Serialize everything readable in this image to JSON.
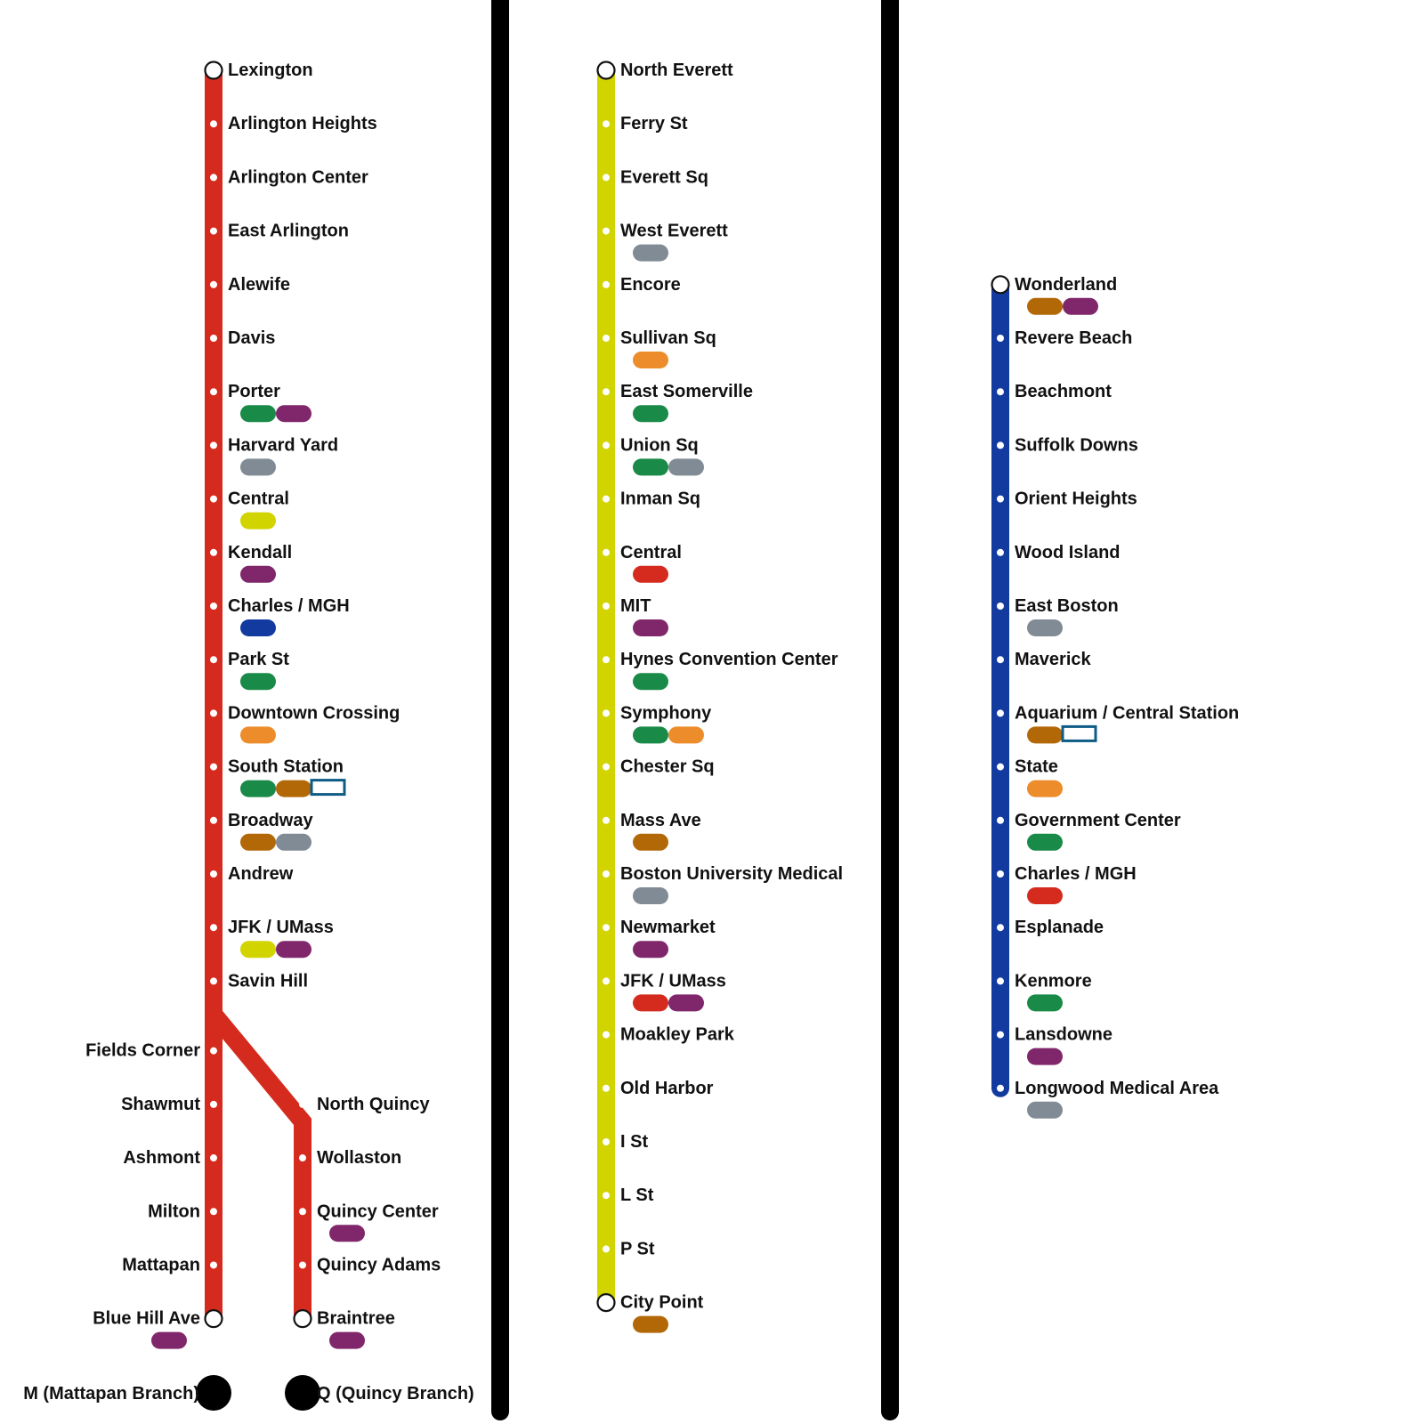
{
  "colors": {
    "red": "#d52b1e",
    "yellow": "#d2d400",
    "blue": "#123a9f",
    "green": "#1a8a48",
    "purple": "#80276c",
    "gray": "#808b95",
    "orange": "#ec8c2a",
    "brown": "#b36807",
    "outline": "#0e5c86",
    "divider": "#000000"
  },
  "lines": [
    {
      "color": "red",
      "trunk": [
        {
          "name": "Lexington",
          "terminal": true
        },
        {
          "name": "Arlington Heights"
        },
        {
          "name": "Arlington Center"
        },
        {
          "name": "East Arlington"
        },
        {
          "name": "Alewife"
        },
        {
          "name": "Davis"
        },
        {
          "name": "Porter",
          "transfers": [
            "green",
            "purple"
          ]
        },
        {
          "name": "Harvard Yard",
          "transfers": [
            "gray"
          ]
        },
        {
          "name": "Central",
          "transfers": [
            "yellow"
          ]
        },
        {
          "name": "Kendall",
          "transfers": [
            "purple"
          ]
        },
        {
          "name": "Charles / MGH",
          "transfers": [
            "blue"
          ]
        },
        {
          "name": "Park St",
          "transfers": [
            "green"
          ]
        },
        {
          "name": "Downtown Crossing",
          "transfers": [
            "orange"
          ]
        },
        {
          "name": "South Station",
          "transfers": [
            "green",
            "brown",
            "outline"
          ]
        },
        {
          "name": "Broadway",
          "transfers": [
            "brown",
            "gray"
          ]
        },
        {
          "name": "Andrew"
        },
        {
          "name": "JFK / UMass",
          "transfers": [
            "yellow",
            "purple"
          ]
        },
        {
          "name": "Savin Hill"
        }
      ],
      "branches": [
        {
          "label": "M (Mattapan Branch)",
          "stations": [
            {
              "name": "Fields Corner"
            },
            {
              "name": "Shawmut"
            },
            {
              "name": "Ashmont"
            },
            {
              "name": "Milton"
            },
            {
              "name": "Mattapan"
            },
            {
              "name": "Blue Hill Ave",
              "terminal": true,
              "transfers": [
                "purple"
              ]
            }
          ]
        },
        {
          "label": "Q (Quincy Branch)",
          "stations": [
            {
              "name": "North Quincy"
            },
            {
              "name": "Wollaston"
            },
            {
              "name": "Quincy Center",
              "transfers": [
                "purple"
              ]
            },
            {
              "name": "Quincy Adams"
            },
            {
              "name": "Braintree",
              "terminal": true,
              "transfers": [
                "purple"
              ]
            }
          ]
        }
      ]
    },
    {
      "color": "yellow",
      "stations": [
        {
          "name": "North Everett",
          "terminal": true
        },
        {
          "name": "Ferry St"
        },
        {
          "name": "Everett Sq"
        },
        {
          "name": "West Everett",
          "transfers": [
            "gray"
          ]
        },
        {
          "name": "Encore"
        },
        {
          "name": "Sullivan Sq",
          "transfers": [
            "orange"
          ]
        },
        {
          "name": "East Somerville",
          "transfers": [
            "green"
          ]
        },
        {
          "name": "Union Sq",
          "transfers": [
            "green",
            "gray"
          ]
        },
        {
          "name": "Inman Sq"
        },
        {
          "name": "Central",
          "transfers": [
            "red"
          ]
        },
        {
          "name": "MIT",
          "transfers": [
            "purple"
          ]
        },
        {
          "name": "Hynes Convention Center",
          "transfers": [
            "green"
          ]
        },
        {
          "name": "Symphony",
          "transfers": [
            "green",
            "orange"
          ]
        },
        {
          "name": "Chester Sq"
        },
        {
          "name": "Mass Ave",
          "transfers": [
            "brown"
          ]
        },
        {
          "name": "Boston University Medical",
          "transfers": [
            "gray"
          ]
        },
        {
          "name": "Newmarket",
          "transfers": [
            "purple"
          ]
        },
        {
          "name": "JFK / UMass",
          "transfers": [
            "red",
            "purple"
          ]
        },
        {
          "name": "Moakley Park"
        },
        {
          "name": "Old Harbor"
        },
        {
          "name": "I St"
        },
        {
          "name": "L St"
        },
        {
          "name": "P St"
        },
        {
          "name": "City Point",
          "terminal": true,
          "transfers": [
            "brown"
          ]
        }
      ]
    },
    {
      "color": "blue",
      "stations": [
        {
          "name": "Wonderland",
          "terminal": true,
          "transfers": [
            "brown",
            "purple"
          ]
        },
        {
          "name": "Revere Beach"
        },
        {
          "name": "Beachmont"
        },
        {
          "name": "Suffolk Downs"
        },
        {
          "name": "Orient Heights"
        },
        {
          "name": "Wood Island"
        },
        {
          "name": "East Boston",
          "transfers": [
            "gray"
          ]
        },
        {
          "name": "Maverick"
        },
        {
          "name": "Aquarium / Central Station",
          "transfers": [
            "brown",
            "outline"
          ]
        },
        {
          "name": "State",
          "transfers": [
            "orange"
          ]
        },
        {
          "name": "Government Center",
          "transfers": [
            "green"
          ]
        },
        {
          "name": "Charles / MGH",
          "transfers": [
            "red"
          ]
        },
        {
          "name": "Esplanade"
        },
        {
          "name": "Kenmore",
          "transfers": [
            "green"
          ]
        },
        {
          "name": "Lansdowne",
          "transfers": [
            "purple"
          ]
        },
        {
          "name": "Longwood Medical Area",
          "terminal": true,
          "transfers": [
            "gray"
          ]
        }
      ]
    }
  ]
}
